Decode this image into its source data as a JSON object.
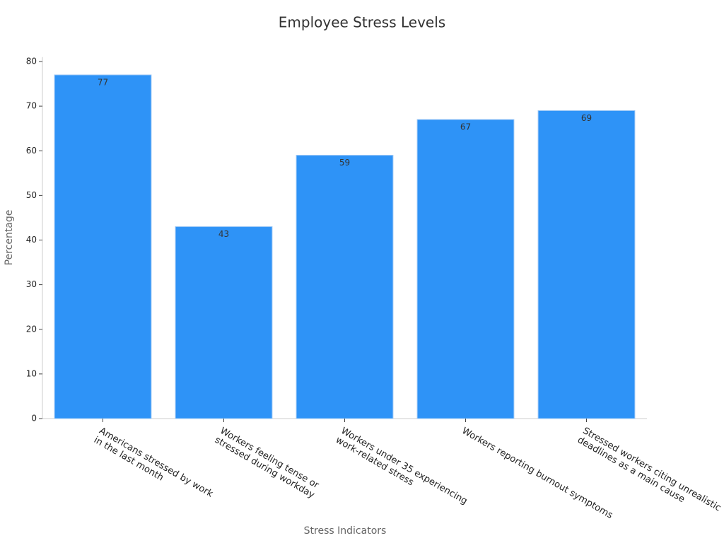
{
  "chart_data": {
    "type": "bar",
    "title": "Employee Stress Levels",
    "x_label": "Stress Indicators",
    "y_label": "Percentage",
    "categories": [
      "Americans stressed by work\nin the last month",
      "Workers feeling tense or\nstressed during workday",
      "Workers under 35 experiencing\nwork-related stress",
      "Workers reporting burnout symptoms",
      "Stressed workers citing unrealistic\ndeadlines as a main cause"
    ],
    "values": [
      77,
      43,
      59,
      67,
      69
    ],
    "color": "#2e93f7",
    "ylim": [
      0,
      81
    ],
    "yticks": [
      0,
      10,
      20,
      30,
      40,
      50,
      60,
      70,
      80
    ],
    "grid": false
  }
}
